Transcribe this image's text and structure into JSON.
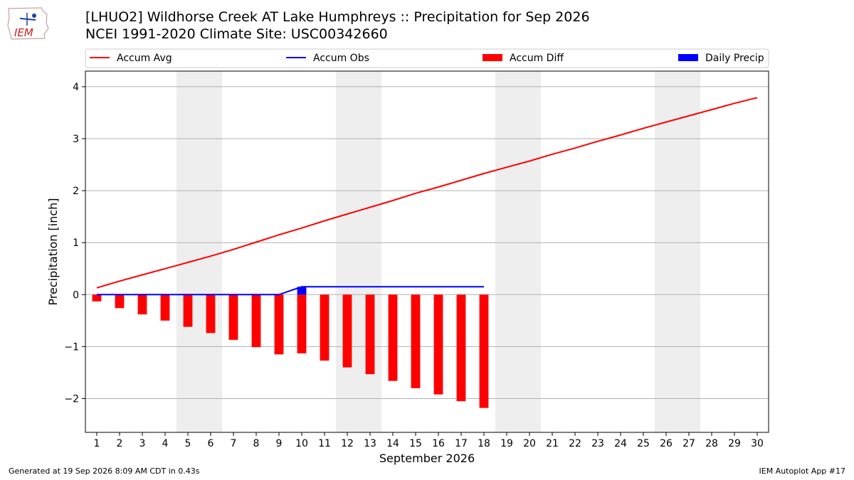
{
  "header": {
    "title_line1": "[LHUO2] Wildhorse Creek  AT Lake Humphreys :: Precipitation for Sep 2026",
    "title_line2": "NCEI 1991-2020 Climate Site: USC00342660",
    "logo_text": "IEM"
  },
  "footer": {
    "generated": "Generated at 19 Sep 2026 8:09 AM CDT in 0.43s",
    "app": "IEM Autoplot App #17"
  },
  "chart_data": {
    "type": "bar",
    "xlabel": "September 2026",
    "ylabel": "Precipitation [inch]",
    "xlim": [
      0.5,
      30.5
    ],
    "ylim": [
      -2.65,
      4.3
    ],
    "yticks": [
      -2,
      -1,
      0,
      1,
      2,
      3,
      4
    ],
    "ytick_labels": [
      "−2",
      "−1",
      "0",
      "1",
      "2",
      "3",
      "4"
    ],
    "x_ticks": [
      1,
      2,
      3,
      4,
      5,
      6,
      7,
      8,
      9,
      10,
      11,
      12,
      13,
      14,
      15,
      16,
      17,
      18,
      19,
      20,
      21,
      22,
      23,
      24,
      25,
      26,
      27,
      28,
      29,
      30
    ],
    "weekend_bands": [
      [
        4.5,
        6.5
      ],
      [
        11.5,
        13.5
      ],
      [
        18.5,
        20.5
      ],
      [
        25.5,
        27.5
      ]
    ],
    "grid": "y",
    "legend": [
      "Accum Avg",
      "Accum Obs",
      "Accum Diff",
      "Daily Precip"
    ],
    "legend_placement": "top",
    "colors": {
      "avg": "#ff0000",
      "obs": "#0000ff",
      "diff": "#ff0000",
      "daily": "#0000ff",
      "weekend": "#eeeeee",
      "grid": "#b0b0b0"
    },
    "accum_avg": {
      "x": [
        1,
        2,
        3,
        4,
        5,
        6,
        7,
        8,
        9,
        10,
        11,
        12,
        13,
        14,
        15,
        16,
        17,
        18,
        19,
        20,
        21,
        22,
        23,
        24,
        25,
        26,
        27,
        28,
        29,
        30
      ],
      "values": [
        0.13,
        0.26,
        0.38,
        0.5,
        0.62,
        0.74,
        0.87,
        1.01,
        1.15,
        1.28,
        1.42,
        1.55,
        1.68,
        1.81,
        1.95,
        2.07,
        2.2,
        2.33,
        2.45,
        2.57,
        2.7,
        2.82,
        2.95,
        3.07,
        3.2,
        3.32,
        3.44,
        3.56,
        3.68,
        3.79
      ]
    },
    "accum_obs": {
      "x": [
        1,
        2,
        3,
        4,
        5,
        6,
        7,
        8,
        9,
        10,
        11,
        12,
        13,
        14,
        15,
        16,
        17,
        18
      ],
      "values": [
        0,
        0,
        0,
        0,
        0,
        0,
        0,
        0,
        0,
        0.15,
        0.15,
        0.15,
        0.15,
        0.15,
        0.15,
        0.15,
        0.15,
        0.15
      ]
    },
    "accum_diff": {
      "x": [
        1,
        2,
        3,
        4,
        5,
        6,
        7,
        8,
        9,
        10,
        11,
        12,
        13,
        14,
        15,
        16,
        17,
        18
      ],
      "values": [
        -0.13,
        -0.26,
        -0.38,
        -0.5,
        -0.62,
        -0.74,
        -0.87,
        -1.01,
        -1.15,
        -1.13,
        -1.27,
        -1.4,
        -1.53,
        -1.66,
        -1.8,
        -1.92,
        -2.05,
        -2.18
      ]
    },
    "daily_precip": {
      "x": [
        10
      ],
      "values": [
        0.15
      ]
    }
  }
}
